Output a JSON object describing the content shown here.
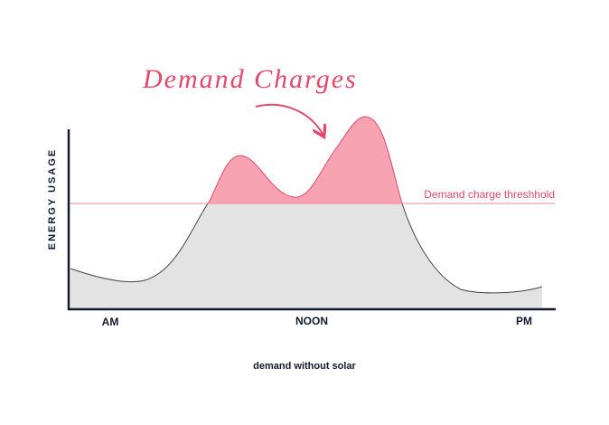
{
  "title": "Demand Charges",
  "threshold_label": "Demand charge threshhold",
  "y_axis_label": "ENERGY USAGE",
  "x_labels": [
    "AM",
    "NOON",
    "PM"
  ],
  "caption": "demand without solar"
}
